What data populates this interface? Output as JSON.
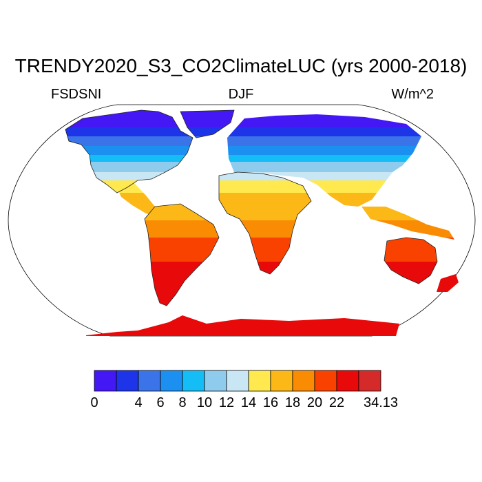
{
  "title": "TRENDY2020_S3_CO2ClimateLUC (yrs 2000-2018)",
  "subtitle_left": "FSDSNI",
  "subtitle_center": "DJF",
  "subtitle_right": "W/m^2",
  "colorbar": {
    "colors": [
      "#4418f5",
      "#1d34e8",
      "#3a74e8",
      "#1c90f0",
      "#14bdf5",
      "#8fcbec",
      "#c9e6f5",
      "#ffe94f",
      "#fcb817",
      "#fa8c04",
      "#fa4200",
      "#e80a0a",
      "#d42a2a"
    ],
    "labels": [
      "0",
      "4",
      "6",
      "8",
      "10",
      "12",
      "14",
      "16",
      "18",
      "20",
      "22",
      "34.13"
    ]
  },
  "map_legend_bands": [
    {
      "lat_range": "high north",
      "color": "#4418f5"
    },
    {
      "lat_range": "tropics",
      "color": "#fcb817"
    },
    {
      "lat_range": "antarctica",
      "color": "#e80a0a"
    }
  ]
}
